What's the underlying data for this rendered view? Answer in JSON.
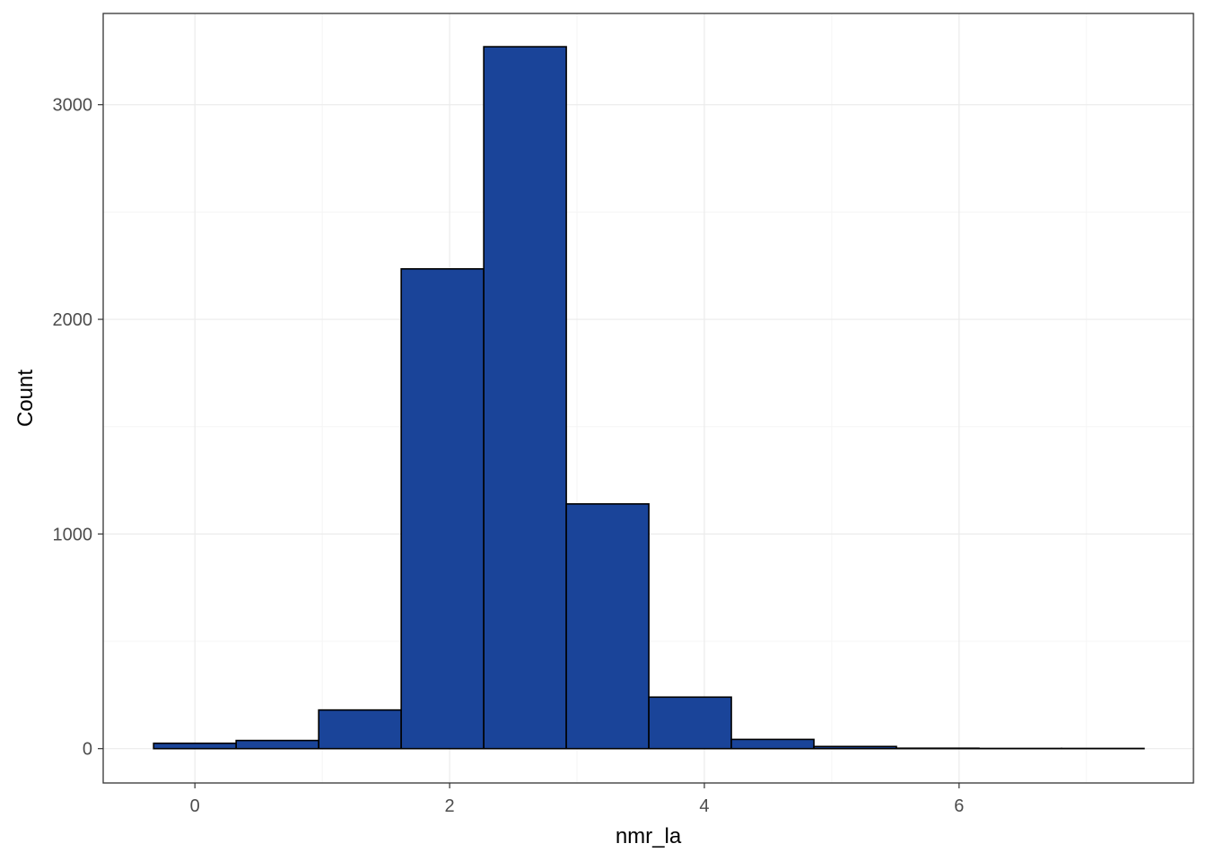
{
  "chart_data": {
    "type": "bar",
    "subtype": "histogram",
    "xlabel": "nmr_la",
    "ylabel": "Count",
    "xlim": [
      -0.72,
      7.84
    ],
    "ylim": [
      -160,
      3425
    ],
    "x_ticks": [
      0,
      2,
      4,
      6
    ],
    "y_ticks": [
      0,
      1000,
      2000,
      3000
    ],
    "grid": true,
    "bins": [
      {
        "x0": -0.324,
        "x1": 0.324,
        "count": 25
      },
      {
        "x0": 0.324,
        "x1": 0.972,
        "count": 38
      },
      {
        "x0": 0.972,
        "x1": 1.62,
        "count": 180
      },
      {
        "x0": 1.62,
        "x1": 2.268,
        "count": 2235
      },
      {
        "x0": 2.268,
        "x1": 2.916,
        "count": 3270
      },
      {
        "x0": 2.916,
        "x1": 3.564,
        "count": 1140
      },
      {
        "x0": 3.564,
        "x1": 4.212,
        "count": 240
      },
      {
        "x0": 4.212,
        "x1": 4.86,
        "count": 43
      },
      {
        "x0": 4.86,
        "x1": 5.508,
        "count": 10
      },
      {
        "x0": 5.508,
        "x1": 6.156,
        "count": 2
      },
      {
        "x0": 6.156,
        "x1": 6.804,
        "count": 1
      },
      {
        "x0": 6.804,
        "x1": 7.452,
        "count": 1
      }
    ],
    "colors": {
      "bar_fill": "#1A4499",
      "bar_stroke": "#000000",
      "grid_major": "#EBEBEB",
      "grid_minor": "#F5F5F5",
      "panel_border": "#333333"
    }
  }
}
